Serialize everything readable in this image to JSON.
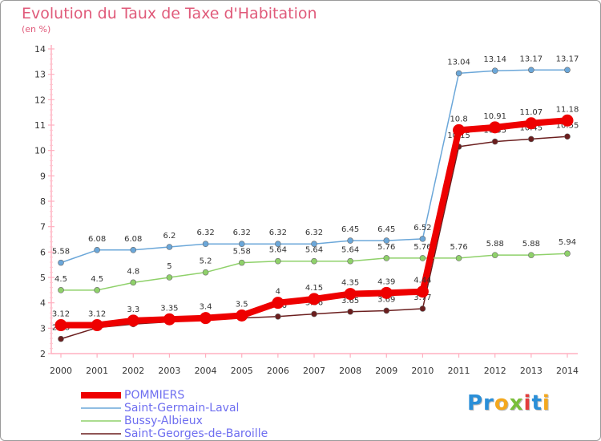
{
  "header": {
    "title": "Evolution du Taux de Taxe d'Habitation",
    "unit": "(en %)"
  },
  "logo": {
    "text": "Proxiti",
    "colors": [
      "#2a8fd8",
      "#f4a81d",
      "#e23d3d",
      "#7abf3a"
    ]
  },
  "chart_data": {
    "type": "line",
    "x": [
      2000,
      2001,
      2002,
      2003,
      2004,
      2005,
      2006,
      2007,
      2008,
      2009,
      2010,
      2011,
      2012,
      2013,
      2014
    ],
    "ylim": [
      2,
      14
    ],
    "yticks": [
      2,
      3,
      4,
      5,
      6,
      7,
      8,
      9,
      10,
      11,
      12,
      13,
      14
    ],
    "grid": false,
    "legend_position": "bottom-left",
    "series": [
      {
        "name": "Saint-Georges-de-Baroille",
        "color": "#6b1e1e",
        "values": [
          2.58,
          3.02,
          3.16,
          3.25,
          3.32,
          3.4,
          3.46,
          3.56,
          3.65,
          3.69,
          3.77,
          10.15,
          10.35,
          10.45,
          10.55
        ],
        "labels": [
          "2.58",
          null,
          null,
          null,
          null,
          null,
          "3.46",
          "3.56",
          "3.65",
          "3.69",
          "3.77",
          "10.15",
          "10.35",
          "10.45",
          "10.55"
        ]
      },
      {
        "name": "Bussy-Albieux",
        "color": "#8fd16a",
        "values": [
          4.5,
          4.5,
          4.8,
          5,
          5.2,
          5.58,
          5.64,
          5.64,
          5.64,
          5.76,
          5.76,
          5.76,
          5.88,
          5.88,
          5.94
        ],
        "labels": [
          "4.5",
          "4.5",
          "4.8",
          "5",
          "5.2",
          "5.58",
          "5.64",
          "5.64",
          "5.64",
          "5.76",
          "5.76",
          "5.76",
          "5.88",
          "5.88",
          "5.94"
        ]
      },
      {
        "name": "Saint-Germain-Laval",
        "color": "#6ba7d9",
        "values": [
          5.58,
          6.08,
          6.08,
          6.2,
          6.32,
          6.32,
          6.32,
          6.32,
          6.45,
          6.45,
          6.52,
          13.04,
          13.14,
          13.17,
          13.17
        ],
        "labels": [
          "5.58",
          "6.08",
          "6.08",
          "6.2",
          "6.32",
          "6.32",
          "6.32",
          "6.32",
          "6.45",
          "6.45",
          "6.52",
          "13.04",
          "13.14",
          "13.17",
          "13.17"
        ]
      },
      {
        "name": "POMMIERS",
        "color": "#ee0000",
        "values": [
          3.12,
          3.12,
          3.3,
          3.35,
          3.4,
          3.5,
          4,
          4.15,
          4.35,
          4.39,
          4.44,
          10.8,
          10.91,
          11.07,
          11.18
        ],
        "labels": [
          "3.12",
          "3.12",
          "3.3",
          "3.35",
          "3.4",
          "3.5",
          "4",
          "4.15",
          "4.35",
          "4.39",
          "4.44",
          "10.8",
          "10.91",
          "11.07",
          "11.18"
        ]
      }
    ],
    "legend": [
      "POMMIERS",
      "Saint-Germain-Laval",
      "Bussy-Albieux",
      "Saint-Georges-de-Baroille"
    ]
  }
}
